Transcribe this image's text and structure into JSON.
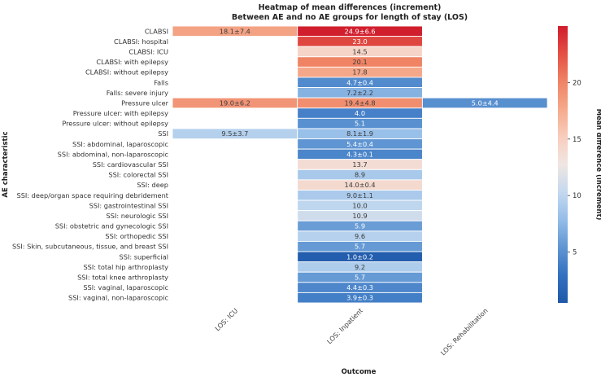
{
  "chart_data": {
    "type": "heatmap",
    "title_line1": "Heatmap of mean differences (increment)",
    "title_line2": "Between AE and no AE groups for length of stay (LOS)",
    "xlabel": "Outcome",
    "ylabel": "AE characteristic",
    "colorbar_label": "Mean difference (increment)",
    "colorbar_range": [
      0.5,
      25.0
    ],
    "colorbar_ticks": [
      5,
      10,
      15,
      20
    ],
    "columns": [
      "LOS: ICU",
      "LOS: Inpatient",
      "LOS: Rehabilitation"
    ],
    "rows": [
      {
        "label": "CLABSI",
        "values": [
          18.1,
          24.9,
          null
        ],
        "labels": [
          "18.1±7.4",
          "24.9±6.6",
          ""
        ]
      },
      {
        "label": "CLABSI: hospital",
        "values": [
          null,
          23.0,
          null
        ],
        "labels": [
          "",
          "23.0",
          ""
        ]
      },
      {
        "label": "CLABSI: ICU",
        "values": [
          null,
          14.5,
          null
        ],
        "labels": [
          "",
          "14.5",
          ""
        ]
      },
      {
        "label": "CLABSI: with epilepsy",
        "values": [
          null,
          20.1,
          null
        ],
        "labels": [
          "",
          "20.1",
          ""
        ]
      },
      {
        "label": "CLABSI: without epilepsy",
        "values": [
          null,
          17.8,
          null
        ],
        "labels": [
          "",
          "17.8",
          ""
        ]
      },
      {
        "label": "Falls",
        "values": [
          null,
          4.7,
          null
        ],
        "labels": [
          "",
          "4.7±0.4",
          ""
        ]
      },
      {
        "label": "Falls: severe injury",
        "values": [
          null,
          7.2,
          null
        ],
        "labels": [
          "",
          "7.2±2.2",
          ""
        ]
      },
      {
        "label": "Pressure ulcer",
        "values": [
          19.0,
          19.4,
          5.0
        ],
        "labels": [
          "19.0±6.2",
          "19.4±4.8",
          "5.0±4.4"
        ]
      },
      {
        "label": "Pressure ulcer: with epilepsy",
        "values": [
          null,
          4.0,
          null
        ],
        "labels": [
          "",
          "4.0",
          ""
        ]
      },
      {
        "label": "Pressure ulcer: without epilepsy",
        "values": [
          null,
          5.1,
          null
        ],
        "labels": [
          "",
          "5.1",
          ""
        ]
      },
      {
        "label": "SSI",
        "values": [
          9.5,
          8.1,
          null
        ],
        "labels": [
          "9.5±3.7",
          "8.1±1.9",
          ""
        ]
      },
      {
        "label": "SSI: abdominal, laparoscopic",
        "values": [
          null,
          5.4,
          null
        ],
        "labels": [
          "",
          "5.4±0.4",
          ""
        ]
      },
      {
        "label": "SSI: abdominal, non-laparoscopic",
        "values": [
          null,
          4.3,
          null
        ],
        "labels": [
          "",
          "4.3±0.1",
          ""
        ]
      },
      {
        "label": "SSI: cardiovascular SSI",
        "values": [
          null,
          13.7,
          null
        ],
        "labels": [
          "",
          "13.7",
          ""
        ]
      },
      {
        "label": "SSI: colorectal SSI",
        "values": [
          null,
          8.9,
          null
        ],
        "labels": [
          "",
          "8.9",
          ""
        ]
      },
      {
        "label": "SSI: deep",
        "values": [
          null,
          14.0,
          null
        ],
        "labels": [
          "",
          "14.0±0.4",
          ""
        ]
      },
      {
        "label": "SSI: deep/organ space requiring debridement",
        "values": [
          null,
          9.0,
          null
        ],
        "labels": [
          "",
          "9.0±1.1",
          ""
        ]
      },
      {
        "label": "SSI: gastrointestinal SSI",
        "values": [
          null,
          10.0,
          null
        ],
        "labels": [
          "",
          "10.0",
          ""
        ]
      },
      {
        "label": "SSI: neurologic SSI",
        "values": [
          null,
          10.9,
          null
        ],
        "labels": [
          "",
          "10.9",
          ""
        ]
      },
      {
        "label": "SSI: obstetric and gynecologic SSI",
        "values": [
          null,
          5.9,
          null
        ],
        "labels": [
          "",
          "5.9",
          ""
        ]
      },
      {
        "label": "SSI: orthopedic SSI",
        "values": [
          null,
          9.6,
          null
        ],
        "labels": [
          "",
          "9.6",
          ""
        ]
      },
      {
        "label": "SSI: Skin, subcutaneous, tissue, and breast SSI",
        "values": [
          null,
          5.7,
          null
        ],
        "labels": [
          "",
          "5.7",
          ""
        ]
      },
      {
        "label": "SSI: superficial",
        "values": [
          null,
          1.0,
          null
        ],
        "labels": [
          "",
          "1.0±0.2",
          ""
        ]
      },
      {
        "label": "SSI: total hip arthroplasty",
        "values": [
          null,
          9.2,
          null
        ],
        "labels": [
          "",
          "9.2",
          ""
        ]
      },
      {
        "label": "SSI: total knee arthroplasty",
        "values": [
          null,
          5.7,
          null
        ],
        "labels": [
          "",
          "5.7",
          ""
        ]
      },
      {
        "label": "SSI: vaginal, laparoscopic",
        "values": [
          null,
          4.4,
          null
        ],
        "labels": [
          "",
          "4.4±0.3",
          ""
        ]
      },
      {
        "label": "SSI: vaginal, non-laparoscopic",
        "values": [
          null,
          3.9,
          null
        ],
        "labels": [
          "",
          "3.9±0.3",
          ""
        ]
      }
    ]
  }
}
